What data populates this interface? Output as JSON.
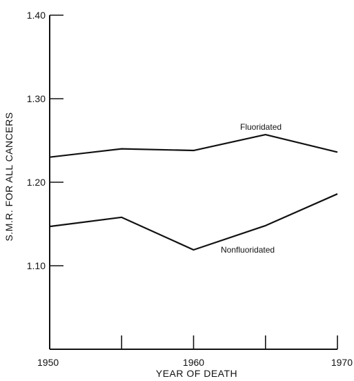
{
  "chart_data": {
    "type": "line",
    "title": "",
    "xlabel": "YEAR OF DEATH",
    "ylabel": "S.M.R. FOR ALL CANCERS",
    "xlim": [
      1950,
      1970
    ],
    "ylim": [
      1.0,
      1.4
    ],
    "x": [
      1950,
      1955,
      1960,
      1965,
      1970
    ],
    "x_tick_labels": [
      "1950",
      "",
      "1960",
      "",
      "1970"
    ],
    "y_ticks": [
      1.1,
      1.2,
      1.3,
      1.4
    ],
    "y_tick_labels": [
      "1.10",
      "1.20",
      "1.30",
      "1.40"
    ],
    "grid": false,
    "series": [
      {
        "name": "Fluoridated",
        "values": [
          1.23,
          1.24,
          1.238,
          1.257,
          1.236
        ]
      },
      {
        "name": "Nonfluoridated",
        "values": [
          1.147,
          1.158,
          1.119,
          1.148,
          1.186
        ]
      }
    ]
  }
}
